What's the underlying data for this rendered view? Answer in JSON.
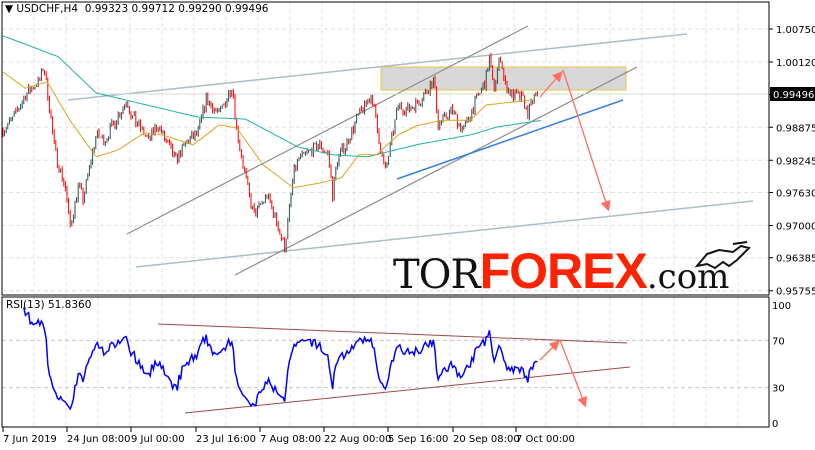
{
  "header": {
    "symbol": "USDCHF,H4",
    "open": "0.99323",
    "high": "0.99712",
    "low": "0.99290",
    "close": "0.99496"
  },
  "rsi_header": "RSI(13) 51.8360",
  "logo": {
    "tor": "TOR",
    "forex": "FOREX",
    "com": ".com"
  },
  "colors": {
    "bull": "#2f4f4f",
    "bear": "#ff0000",
    "ma_fast": "#daa520",
    "ma_slow": "#20b2aa",
    "rsi": "#0000ff",
    "arrow": "#ff6f61",
    "zone_border": "#f0c040"
  },
  "chart_data": {
    "type": "candlestick",
    "symbol": "USDCHF",
    "timeframe": "H4",
    "y_ticks": [
      "1.00750",
      "1.00120",
      "0.99496",
      "0.98875",
      "0.98245",
      "0.97630",
      "0.97000",
      "0.96385",
      "0.95755"
    ],
    "ylim": [
      0.95755,
      1.0122
    ],
    "current_price": "0.99496",
    "x_ticks": [
      {
        "label": "7 Jun 2019",
        "t": "2019-06-07T00:00"
      },
      {
        "label": "24 Jun 08:00",
        "t": "2019-06-24T08:00"
      },
      {
        "label": "9 Jul 00:00",
        "t": "2019-07-09T00:00"
      },
      {
        "label": "23 Jul 16:00",
        "t": "2019-07-23T16:00"
      },
      {
        "label": "7 Aug 08:00",
        "t": "2019-08-07T08:00"
      },
      {
        "label": "22 Aug 00:00",
        "t": "2019-08-22T00:00"
      },
      {
        "label": "5 Sep 16:00",
        "t": "2019-09-05T16:00"
      },
      {
        "label": "20 Sep 08:00",
        "t": "2019-09-20T08:00"
      },
      {
        "label": "7 Oct 00:00",
        "t": "2019-10-07T00:00"
      }
    ],
    "price_path": [
      [
        "2019-06-07",
        0.9882
      ],
      [
        "2019-06-10",
        0.9907
      ],
      [
        "2019-06-13",
        0.9949
      ],
      [
        "2019-06-17",
        0.9978
      ],
      [
        "2019-06-18",
        1.0006
      ],
      [
        "2019-06-19",
        0.9959
      ],
      [
        "2019-06-21",
        0.9844
      ],
      [
        "2019-06-24",
        0.9768
      ],
      [
        "2019-06-25",
        0.9695
      ],
      [
        "2019-06-27",
        0.9777
      ],
      [
        "2019-06-28",
        0.9749
      ],
      [
        "2019-07-01",
        0.9873
      ],
      [
        "2019-07-03",
        0.9863
      ],
      [
        "2019-07-08",
        0.994
      ],
      [
        "2019-07-09",
        0.9911
      ],
      [
        "2019-07-13",
        0.9863
      ],
      [
        "2019-07-15",
        0.9892
      ],
      [
        "2019-07-19",
        0.9825
      ],
      [
        "2019-07-22",
        0.9863
      ],
      [
        "2019-07-24",
        0.9873
      ],
      [
        "2019-07-26",
        0.994
      ],
      [
        "2019-07-29",
        0.9911
      ],
      [
        "2019-08-01",
        0.9968
      ],
      [
        "2019-08-02",
        0.9882
      ],
      [
        "2019-08-05",
        0.9749
      ],
      [
        "2019-08-06",
        0.972
      ],
      [
        "2019-08-09",
        0.9758
      ],
      [
        "2019-08-11",
        0.971
      ],
      [
        "2019-08-13",
        0.9657
      ],
      [
        "2019-08-15",
        0.9796
      ],
      [
        "2019-08-16",
        0.9825
      ],
      [
        "2019-08-21",
        0.9854
      ],
      [
        "2019-08-23",
        0.9835
      ],
      [
        "2019-08-24",
        0.9758
      ],
      [
        "2019-08-25",
        0.9825
      ],
      [
        "2019-08-27",
        0.9854
      ],
      [
        "2019-08-30",
        0.9911
      ],
      [
        "2019-09-02",
        0.9949
      ],
      [
        "2019-09-03",
        0.9892
      ],
      [
        "2019-09-05",
        0.98
      ],
      [
        "2019-09-08",
        0.993
      ],
      [
        "2019-09-10",
        0.992
      ],
      [
        "2019-09-13",
        0.994
      ],
      [
        "2019-09-16",
        0.9978
      ],
      [
        "2019-09-17",
        0.9892
      ],
      [
        "2019-09-20",
        0.992
      ],
      [
        "2019-09-23",
        0.9882
      ],
      [
        "2019-09-26",
        0.993
      ],
      [
        "2019-09-29",
        0.9978
      ],
      [
        "2019-09-30",
        1.0022
      ],
      [
        "2019-10-01",
        0.9959
      ],
      [
        "2019-10-03",
        1.0025
      ],
      [
        "2019-10-04",
        0.9968
      ],
      [
        "2019-10-06",
        0.9949
      ],
      [
        "2019-10-09",
        0.994
      ],
      [
        "2019-10-10",
        0.9911
      ],
      [
        "2019-10-12",
        0.9949
      ],
      [
        "2019-10-13",
        0.99496
      ]
    ],
    "ma_slow": [
      [
        "2019-06-07",
        1.0062
      ],
      [
        "2019-06-22",
        1.0022
      ],
      [
        "2019-07-01",
        0.9953
      ],
      [
        "2019-07-24",
        0.9907
      ],
      [
        "2019-08-04",
        0.9903
      ],
      [
        "2019-08-16",
        0.985
      ],
      [
        "2019-08-24",
        0.9835
      ],
      [
        "2019-09-01",
        0.9831
      ],
      [
        "2019-09-12",
        0.9854
      ],
      [
        "2019-09-25",
        0.9873
      ],
      [
        "2019-10-02",
        0.9888
      ],
      [
        "2019-10-14",
        0.9901
      ]
    ],
    "ma_fast": [
      [
        "2019-06-07",
        0.9993
      ],
      [
        "2019-06-13",
        0.9962
      ],
      [
        "2019-06-19",
        0.9974
      ],
      [
        "2019-06-25",
        0.9901
      ],
      [
        "2019-07-01",
        0.9831
      ],
      [
        "2019-07-06",
        0.9844
      ],
      [
        "2019-07-12",
        0.9877
      ],
      [
        "2019-07-16",
        0.9873
      ],
      [
        "2019-07-23",
        0.9854
      ],
      [
        "2019-07-29",
        0.9892
      ],
      [
        "2019-08-02",
        0.9886
      ],
      [
        "2019-08-08",
        0.9816
      ],
      [
        "2019-08-15",
        0.9772
      ],
      [
        "2019-08-21",
        0.9781
      ],
      [
        "2019-08-26",
        0.9791
      ],
      [
        "2019-08-30",
        0.9835
      ],
      [
        "2019-09-03",
        0.9835
      ],
      [
        "2019-09-08",
        0.9873
      ],
      [
        "2019-09-12",
        0.989
      ],
      [
        "2019-09-18",
        0.9901
      ],
      [
        "2019-09-25",
        0.9901
      ],
      [
        "2019-09-29",
        0.993
      ],
      [
        "2019-10-04",
        0.9934
      ],
      [
        "2019-10-12",
        0.994
      ]
    ],
    "rsi": {
      "period": 13,
      "value": 51.836,
      "levels": [
        70,
        30
      ],
      "y_ticks": [
        "100",
        "70",
        "30",
        "0"
      ],
      "ylim": [
        0,
        100
      ]
    }
  }
}
